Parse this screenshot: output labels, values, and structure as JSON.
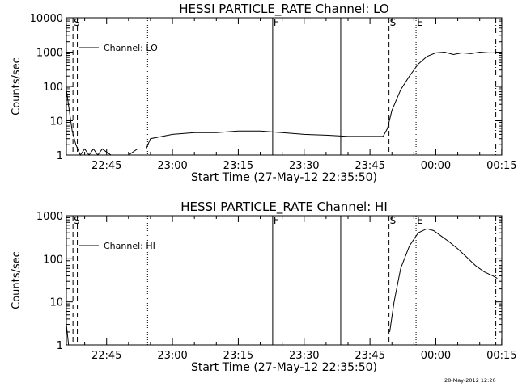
{
  "chart_data": [
    {
      "type": "line",
      "title": "HESSI PARTICLE_RATE Channel: LO",
      "xlabel": "Start Time (27-May-12 22:35:50)",
      "ylabel": "Counts/sec",
      "yscale": "log",
      "ylim": [
        1,
        10000
      ],
      "xlim_minutes_since_start": [
        0,
        99.2
      ],
      "x_tick_labels": [
        "22:45",
        "23:00",
        "23:15",
        "23:30",
        "23:45",
        "00:00",
        "00:15"
      ],
      "y_tick_labels": [
        "1",
        "10",
        "100",
        "1000",
        "10000"
      ],
      "legend": {
        "label": "Channel: LO",
        "placement": "top-left"
      },
      "markers": [
        {
          "label": "S",
          "time": "22:37:20",
          "style": "dashed"
        },
        {
          "label": "",
          "time": "22:38:20",
          "style": "dashed"
        },
        {
          "label": "",
          "time": "22:54:20",
          "style": "dotted"
        },
        {
          "label": "F",
          "time": "23:22:50",
          "style": "solid"
        },
        {
          "label": "",
          "time": "23:38:20",
          "style": "solid"
        },
        {
          "label": "S",
          "time": "23:49:20",
          "style": "dashed"
        },
        {
          "label": "E",
          "time": "23:55:30",
          "style": "dotted"
        },
        {
          "label": "",
          "time": "00:13:40",
          "style": "dashdot"
        }
      ],
      "series": [
        {
          "name": "Channel: LO",
          "x": [
            "22:35:50",
            "22:36:30",
            "22:37:10",
            "22:38:00",
            "22:39:00",
            "22:40:00",
            "22:41:00",
            "22:42:00",
            "22:43:00",
            "22:44:00",
            "22:46:00",
            "22:48:00",
            "22:50:00",
            "22:52:00",
            "22:53:00",
            "22:54:00",
            "22:55:00",
            "23:00:00",
            "23:05:00",
            "23:10:00",
            "23:15:00",
            "23:20:00",
            "23:25:00",
            "23:30:00",
            "23:35:00",
            "23:40:00",
            "23:45:00",
            "23:48:00",
            "23:49:00",
            "23:50:00",
            "23:52:00",
            "23:54:00",
            "23:56:00",
            "23:58:00",
            "00:00:00",
            "00:02:00",
            "00:04:00",
            "00:06:00",
            "00:08:00",
            "00:10:00",
            "00:12:00",
            "00:14:00"
          ],
          "y": [
            80,
            20,
            5,
            2,
            1,
            1.5,
            1,
            1.5,
            1,
            1.5,
            1,
            1,
            1,
            1.5,
            1.5,
            1.5,
            3,
            4,
            4.5,
            4.5,
            5,
            5,
            4.5,
            4,
            3.8,
            3.5,
            3.5,
            3.5,
            6,
            20,
            80,
            200,
            450,
            750,
            950,
            1000,
            850,
            950,
            900,
            1000,
            950,
            950
          ]
        }
      ]
    },
    {
      "type": "line",
      "title": "HESSI PARTICLE_RATE Channel: HI",
      "xlabel": "Start Time (27-May-12 22:35:50)",
      "ylabel": "Counts/sec",
      "yscale": "log",
      "ylim": [
        1,
        1000
      ],
      "xlim_minutes_since_start": [
        0,
        99.2
      ],
      "x_tick_labels": [
        "22:45",
        "23:00",
        "23:15",
        "23:30",
        "23:45",
        "00:00",
        "00:15"
      ],
      "y_tick_labels": [
        "1",
        "10",
        "100",
        "1000"
      ],
      "legend": {
        "label": "Channel: HI",
        "placement": "top-left"
      },
      "markers": [
        {
          "label": "S",
          "time": "22:37:20",
          "style": "dashed"
        },
        {
          "label": "",
          "time": "22:38:20",
          "style": "dashed"
        },
        {
          "label": "",
          "time": "22:54:20",
          "style": "dotted"
        },
        {
          "label": "F",
          "time": "23:22:50",
          "style": "solid"
        },
        {
          "label": "",
          "time": "23:38:20",
          "style": "solid"
        },
        {
          "label": "S",
          "time": "23:49:20",
          "style": "dashed"
        },
        {
          "label": "E",
          "time": "23:55:30",
          "style": "dotted"
        },
        {
          "label": "",
          "time": "00:13:40",
          "style": "dashdot"
        }
      ],
      "series": [
        {
          "name": "Channel: HI",
          "segments": [
            {
              "x": [
                "22:35:50",
                "22:36:20"
              ],
              "y": [
                3,
                1
              ]
            },
            {
              "x": [
                "23:49:30",
                "23:50:30",
                "23:52:00",
                "23:54:00",
                "23:56:00",
                "23:58:00",
                "23:59:30",
                "00:01:00",
                "00:03:00",
                "00:05:00",
                "00:07:00",
                "00:09:00",
                "00:11:00",
                "00:13:00",
                "00:14:00"
              ],
              "y": [
                2,
                10,
                60,
                200,
                400,
                500,
                450,
                350,
                250,
                170,
                110,
                70,
                50,
                40,
                35
              ]
            }
          ]
        }
      ]
    }
  ],
  "footer_timestamp": "28-May-2012 12:20"
}
